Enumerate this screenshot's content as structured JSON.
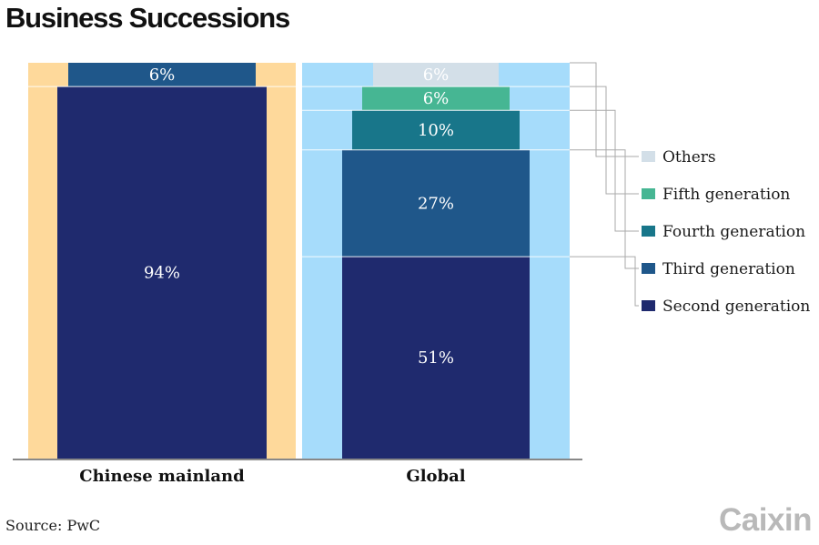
{
  "title": "Business Successions",
  "source": "Source: PwC",
  "logo": "Caixin",
  "colors": {
    "mainland_bg": "#fed99b",
    "global_bg": "#a6dcfb",
    "second": "#1f2a6e",
    "third": "#1f578a",
    "fourth": "#18768a",
    "fifth": "#46b693",
    "others": "#d3dfe8",
    "connector": "#aaaaaa",
    "baseline": "#888888"
  },
  "chart_data": {
    "type": "bar",
    "title": "Business Successions",
    "categories": [
      "Chinese mainland",
      "Global"
    ],
    "series": [
      {
        "name": "Second generation",
        "key": "second",
        "values": [
          94,
          51
        ]
      },
      {
        "name": "Third generation",
        "key": "third",
        "values": [
          6,
          27
        ]
      },
      {
        "name": "Fourth generation",
        "key": "fourth",
        "values": [
          0,
          10
        ]
      },
      {
        "name": "Fifth generation",
        "key": "fifth",
        "values": [
          0,
          6
        ]
      },
      {
        "name": "Others",
        "key": "others",
        "values": [
          0,
          6
        ]
      }
    ],
    "labels": [
      {
        "category": 0,
        "series": "second",
        "text": "94%"
      },
      {
        "category": 0,
        "series": "third",
        "text": "6%"
      },
      {
        "category": 1,
        "series": "second",
        "text": "51%"
      },
      {
        "category": 1,
        "series": "third",
        "text": "27%"
      },
      {
        "category": 1,
        "series": "fourth",
        "text": "10%"
      },
      {
        "category": 1,
        "series": "fifth",
        "text": "6%"
      },
      {
        "category": 1,
        "series": "others",
        "text": "6%"
      }
    ],
    "legend": [
      "Others",
      "Fifth generation",
      "Fourth generation",
      "Third generation",
      "Second generation"
    ],
    "legend_keys": [
      "others",
      "fifth",
      "fourth",
      "third",
      "second"
    ],
    "legend_position": "right",
    "unit": "%"
  }
}
